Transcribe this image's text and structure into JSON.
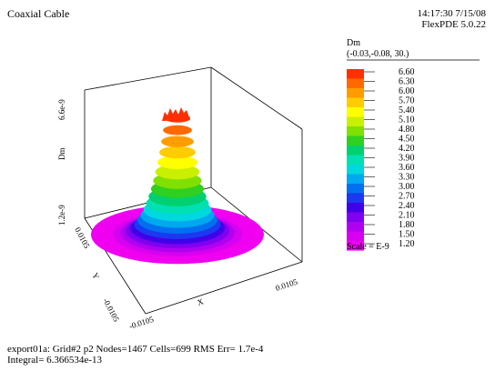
{
  "header": {
    "title": "Coaxial Cable",
    "time": "14:17:30 7/15/08",
    "version": "FlexPDE 5.0.22"
  },
  "legend": {
    "variable": "Dm",
    "point": "(-0.03,-0.08, 30.)",
    "scale": "Scale = E-9",
    "levels": [
      "6.60",
      "6.30",
      "6.00",
      "5.70",
      "5.40",
      "5.10",
      "4.80",
      "4.50",
      "4.20",
      "3.90",
      "3.60",
      "3.30",
      "3.00",
      "2.70",
      "2.40",
      "2.10",
      "1.80",
      "1.50",
      "1.20"
    ],
    "colors": [
      "#ff3000",
      "#ff6a00",
      "#ff9c00",
      "#ffcc00",
      "#ffff00",
      "#c8f000",
      "#80e000",
      "#30d020",
      "#00d070",
      "#00e0b0",
      "#00d8e0",
      "#00a8f0",
      "#0070f0",
      "#1c38f0",
      "#4000e8",
      "#8000f0",
      "#b000f0",
      "#d800f0",
      "#f000f0"
    ]
  },
  "chart_data": {
    "type": "surface",
    "title": "Coaxial Cable",
    "zlabel": "Dm",
    "ztick_labels": [
      "1.2e-9",
      "6.6e-9"
    ],
    "xlabel": "X",
    "xtick_labels": [
      "-0.0105",
      "0.0105"
    ],
    "ylabel": "Y",
    "ytick_labels": [
      "0.0105",
      "-0.0105"
    ],
    "zrange": [
      1.2e-09,
      6.6e-09
    ]
  },
  "footer": {
    "line1": "export01a:  Grid#2  p2  Nodes=1467 Cells=699 RMS Err= 1.7e-4",
    "line2": "Integral=  6.366534e-13"
  }
}
